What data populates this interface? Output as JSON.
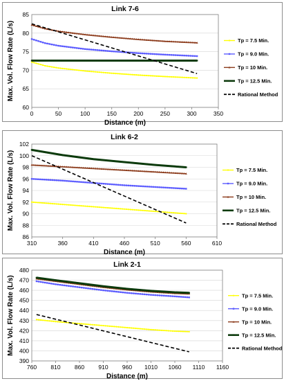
{
  "chart_data": [
    {
      "type": "line",
      "title": "Link 7-6",
      "xlabel": "Distance (m)",
      "ylabel": "Max. Vol. Flow Rate (L/s)",
      "xlim": [
        0,
        350
      ],
      "ylim": [
        60,
        85
      ],
      "xticks": [
        0,
        50,
        100,
        150,
        200,
        250,
        300,
        350
      ],
      "yticks": [
        60,
        65,
        70,
        75,
        80,
        85
      ],
      "grid": true,
      "legend_position": "right",
      "series": [
        {
          "name": "Tp = 7.5 Min.",
          "color": "#ffff00",
          "marker": "dot",
          "dashed": false,
          "x": [
            0,
            25,
            50,
            100,
            150,
            200,
            250,
            310
          ],
          "y": [
            72.2,
            71.2,
            70.6,
            69.8,
            69.2,
            68.7,
            68.3,
            67.9
          ]
        },
        {
          "name": "Tp = 9.0 Min.",
          "color": "#5a5aff",
          "marker": "square",
          "dashed": false,
          "x": [
            0,
            25,
            50,
            100,
            150,
            200,
            250,
            310
          ],
          "y": [
            78.4,
            77.3,
            76.6,
            75.7,
            75.1,
            74.6,
            74.2,
            73.8
          ]
        },
        {
          "name": "Tp = 10 Min.",
          "color": "#8b3a1a",
          "marker": "triangle",
          "dashed": false,
          "x": [
            0,
            25,
            50,
            100,
            150,
            200,
            250,
            310
          ],
          "y": [
            82.2,
            81.2,
            80.5,
            79.6,
            78.9,
            78.3,
            77.8,
            77.4
          ]
        },
        {
          "name": "Tp = 12.5 Min.",
          "color": "#0d3b0d",
          "marker": "square",
          "dashed": false,
          "x": [
            0,
            310
          ],
          "y": [
            72.6,
            72.6
          ]
        },
        {
          "name": "Rational Method",
          "color": "#000000",
          "marker": "none",
          "dashed": true,
          "x": [
            0,
            310
          ],
          "y": [
            82.5,
            69.1
          ]
        }
      ]
    },
    {
      "type": "line",
      "title": "Link 6-2",
      "xlabel": "Distance (m)",
      "ylabel": "Max. Vol. Flow Rate (L/s)",
      "xlim": [
        310,
        610
      ],
      "ylim": [
        86,
        102
      ],
      "xticks": [
        310,
        360,
        410,
        460,
        510,
        560,
        610
      ],
      "yticks": [
        86,
        88,
        90,
        92,
        94,
        96,
        98,
        100,
        102
      ],
      "grid": true,
      "legend_position": "right",
      "series": [
        {
          "name": "Tp = 7.5 Min.",
          "color": "#ffff00",
          "marker": "dot",
          "dashed": false,
          "x": [
            310,
            360,
            410,
            460,
            510,
            560
          ],
          "y": [
            92.0,
            91.6,
            91.2,
            90.8,
            90.4,
            90.0
          ]
        },
        {
          "name": "Tp = 9.0 Min.",
          "color": "#5a5aff",
          "marker": "square",
          "dashed": false,
          "x": [
            310,
            360,
            410,
            460,
            510,
            560
          ],
          "y": [
            96.0,
            95.7,
            95.3,
            94.9,
            94.6,
            94.3
          ]
        },
        {
          "name": "Tp = 10 Min.",
          "color": "#8b3a1a",
          "marker": "triangle",
          "dashed": false,
          "x": [
            310,
            360,
            410,
            460,
            510,
            560
          ],
          "y": [
            98.4,
            98.1,
            97.8,
            97.5,
            97.2,
            96.9
          ]
        },
        {
          "name": "Tp = 12.5 Min.",
          "color": "#0d3b0d",
          "marker": "square",
          "dashed": false,
          "x": [
            310,
            360,
            410,
            460,
            510,
            560
          ],
          "y": [
            101.0,
            100.1,
            99.4,
            98.9,
            98.4,
            98.0
          ]
        },
        {
          "name": "Rational Method",
          "color": "#000000",
          "marker": "none",
          "dashed": true,
          "x": [
            310,
            560
          ],
          "y": [
            100.0,
            88.4
          ]
        }
      ]
    },
    {
      "type": "line",
      "title": "Link 2-1",
      "xlabel": "Distance (m)",
      "ylabel": "Max. Vol. Flow Rate (L/s)",
      "xlim": [
        760,
        1160
      ],
      "ylim": [
        390,
        480
      ],
      "xticks": [
        760,
        810,
        860,
        910,
        960,
        1010,
        1060,
        1110,
        1160
      ],
      "yticks": [
        390,
        400,
        410,
        420,
        430,
        440,
        450,
        460,
        470,
        480
      ],
      "grid": true,
      "legend_position": "right",
      "series": [
        {
          "name": "Tp = 7.5 Min.",
          "color": "#ffff00",
          "marker": "dot",
          "dashed": false,
          "x": [
            770,
            810,
            860,
            910,
            960,
            1010,
            1060,
            1090
          ],
          "y": [
            431,
            429,
            427,
            425,
            423,
            421,
            419.5,
            419
          ]
        },
        {
          "name": "Tp = 9.0 Min.",
          "color": "#5a5aff",
          "marker": "square",
          "dashed": false,
          "x": [
            770,
            810,
            860,
            910,
            960,
            1010,
            1060,
            1090
          ],
          "y": [
            469,
            466,
            463,
            460,
            457.5,
            455.5,
            454,
            453
          ]
        },
        {
          "name": "Tp = 10 Min.",
          "color": "#8b3a1a",
          "marker": "triangle",
          "dashed": false,
          "x": [
            770,
            810,
            860,
            910,
            960,
            1010,
            1060,
            1090
          ],
          "y": [
            471.5,
            469,
            466,
            463,
            460.5,
            458.5,
            457,
            456.5
          ]
        },
        {
          "name": "Tp = 12.5 Min.",
          "color": "#0d3b0d",
          "marker": "square",
          "dashed": false,
          "x": [
            770,
            810,
            860,
            910,
            960,
            1010,
            1060,
            1090
          ],
          "y": [
            472.5,
            470,
            467,
            464,
            461.5,
            459.5,
            458,
            457.5
          ]
        },
        {
          "name": "Rational Method",
          "color": "#000000",
          "marker": "none",
          "dashed": true,
          "x": [
            770,
            1090
          ],
          "y": [
            436,
            399
          ]
        }
      ]
    }
  ]
}
